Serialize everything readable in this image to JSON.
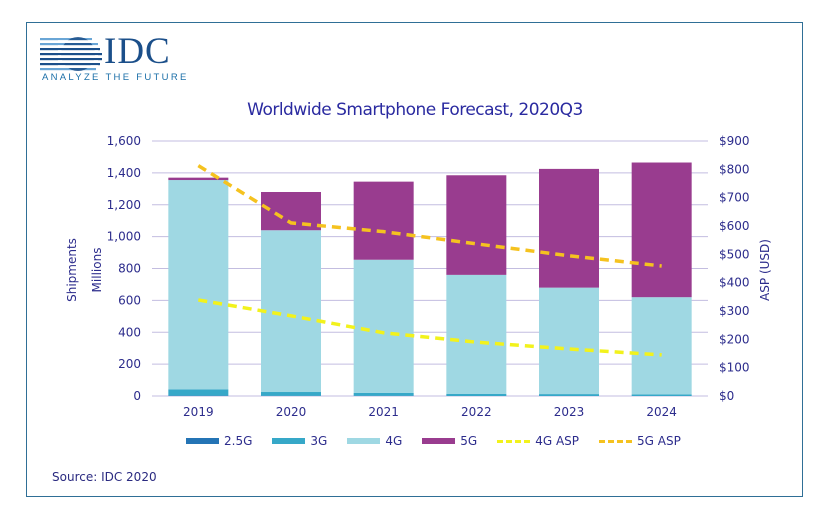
{
  "logo": {
    "text": "IDC",
    "tagline": "ANALYZE THE FUTURE"
  },
  "source": "Source: IDC 2020",
  "colors": {
    "g25": "#2474b5",
    "g3": "#36a8c8",
    "g4": "#9fd8e3",
    "g5": "#993c8f",
    "asp4g": "#f2f21c",
    "asp5g": "#f5c21f",
    "grid": "#c3bde0",
    "frame": "#2f6f96",
    "text": "#2c2c8c"
  },
  "chart_data": {
    "type": "bar",
    "stacked": true,
    "title": "Worldwide Smartphone Forecast, 2020Q3",
    "xlabel": "",
    "ylabel": "Shipments",
    "ylabel2": "Millions",
    "y2label": "ASP (USD)",
    "categories": [
      "2019",
      "2020",
      "2021",
      "2022",
      "2023",
      "2024"
    ],
    "ylim": [
      0,
      1600
    ],
    "yticks": [
      0,
      200,
      400,
      600,
      800,
      1000,
      1200,
      1400,
      1600
    ],
    "ytick_labels": [
      "0",
      "200",
      "400",
      "600",
      "800",
      "1,000",
      "1,200",
      "1,400",
      "1,600"
    ],
    "y2lim": [
      0,
      900
    ],
    "y2ticks": [
      0,
      100,
      200,
      300,
      400,
      500,
      600,
      700,
      800,
      900
    ],
    "y2tick_labels": [
      "$0",
      "$100",
      "$200",
      "$300",
      "$400",
      "$500",
      "$600",
      "$700",
      "$800",
      "$900"
    ],
    "grid": true,
    "legend_position": "bottom",
    "series": [
      {
        "name": "2.5G",
        "kind": "bar",
        "color_key": "g25",
        "values": [
          2,
          1,
          1,
          0,
          0,
          0
        ]
      },
      {
        "name": "3G",
        "kind": "bar",
        "color_key": "g3",
        "values": [
          40,
          24,
          18,
          14,
          12,
          10
        ]
      },
      {
        "name": "4G",
        "kind": "bar",
        "color_key": "g4",
        "values": [
          1313,
          1015,
          836,
          746,
          668,
          610
        ]
      },
      {
        "name": "5G",
        "kind": "bar",
        "color_key": "g5",
        "values": [
          15,
          240,
          490,
          625,
          745,
          845
        ]
      },
      {
        "name": "4G ASP",
        "kind": "line",
        "axis": "right",
        "color_key": "asp4g",
        "values": [
          339,
          283,
          223,
          190,
          166,
          145
        ]
      },
      {
        "name": "5G ASP",
        "kind": "line",
        "axis": "right",
        "color_key": "asp5g",
        "values": [
          813,
          611,
          580,
          537,
          495,
          459
        ]
      }
    ]
  }
}
